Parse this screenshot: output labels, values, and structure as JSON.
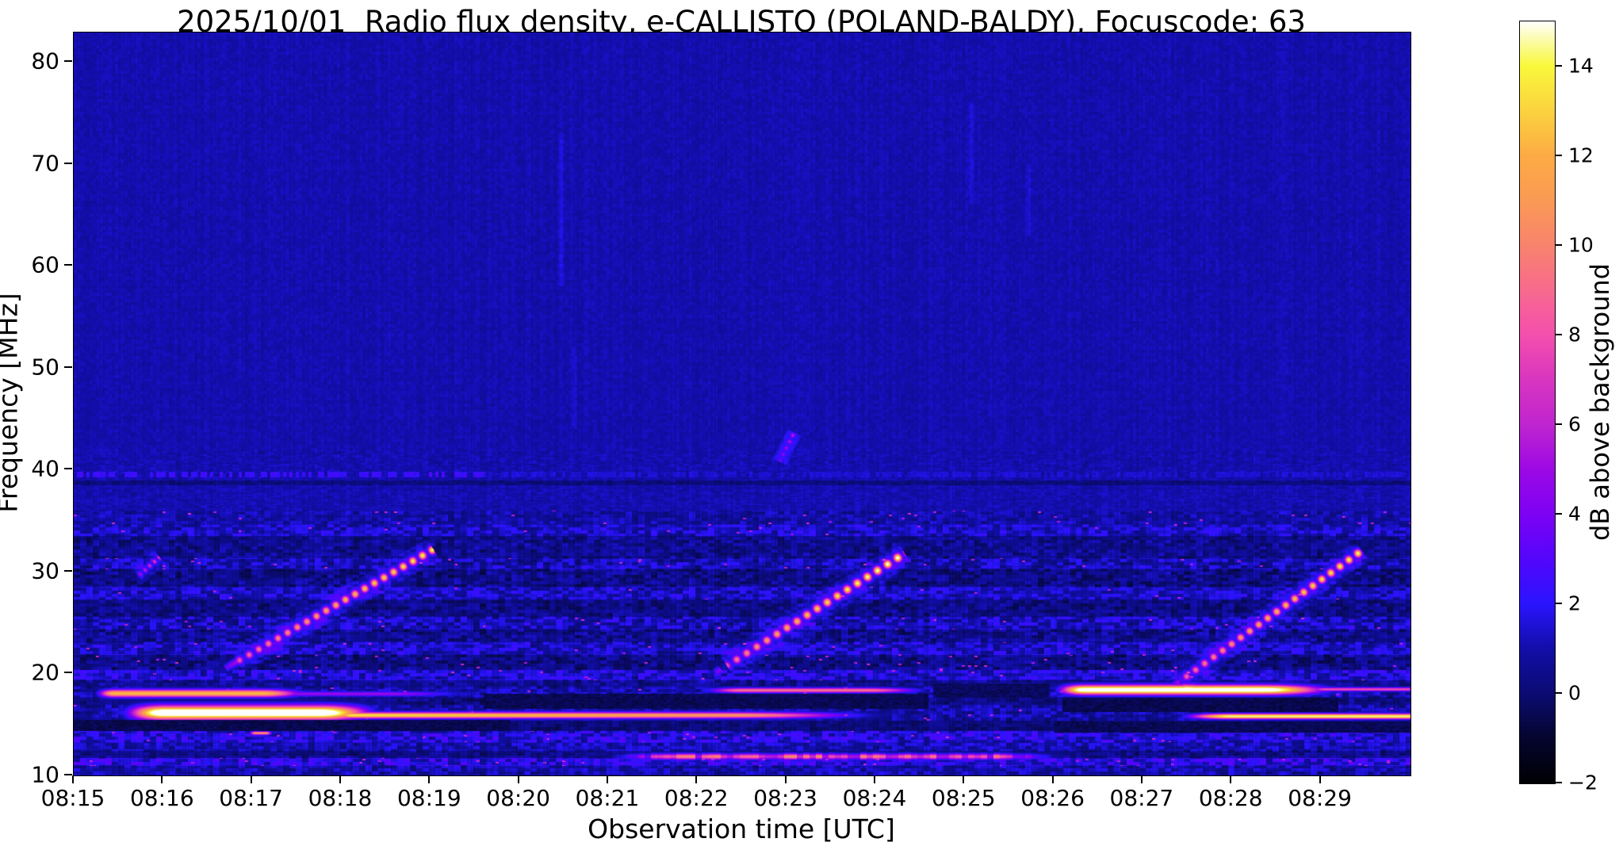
{
  "chart_data": {
    "type": "heatmap",
    "title": "2025/10/01  Radio flux density, e-CALLISTO (POLAND-BALDY), Focuscode: 63",
    "x": {
      "label": "Observation time [UTC]",
      "start": "08:15",
      "end": "08:30",
      "minutes_span": 15.01,
      "tick_labels": [
        "08:15",
        "08:16",
        "08:17",
        "08:18",
        "08:19",
        "08:20",
        "08:21",
        "08:22",
        "08:23",
        "08:24",
        "08:25",
        "08:26",
        "08:27",
        "08:28",
        "08:29"
      ]
    },
    "y": {
      "label": "Frequency [MHz]",
      "min": 10,
      "max": 82.9,
      "ticks": [
        80,
        70,
        60,
        50,
        40,
        30,
        20,
        10
      ]
    },
    "z": {
      "label": "dB above background",
      "min": -2,
      "max": 15,
      "ticks": [
        14,
        12,
        10,
        8,
        6,
        4,
        2,
        0,
        -2
      ],
      "tick_labels": [
        "14",
        "12",
        "10",
        "8",
        "6",
        "4",
        "2",
        "0",
        "−2"
      ]
    },
    "colormap_stops": [
      [
        -2,
        "#000004"
      ],
      [
        -1,
        "#05052e"
      ],
      [
        0,
        "#0b0b72"
      ],
      [
        1,
        "#120ea8"
      ],
      [
        2,
        "#2a14fe"
      ],
      [
        3,
        "#5306fb"
      ],
      [
        4,
        "#7d02f4"
      ],
      [
        5,
        "#9c09e5"
      ],
      [
        6,
        "#bf25cf"
      ],
      [
        7,
        "#d835c0"
      ],
      [
        8,
        "#f44fad"
      ],
      [
        9,
        "#f76a8e"
      ],
      [
        10,
        "#f8836c"
      ],
      [
        11,
        "#fa9a55"
      ],
      [
        12,
        "#fcab44"
      ],
      [
        13,
        "#fbd23e"
      ],
      [
        14,
        "#f9f83b"
      ],
      [
        14.7,
        "#fcfcc0"
      ],
      [
        15,
        "#ffffff"
      ]
    ],
    "background": {
      "upper_base_db": 1.05,
      "upper_noise": 0.22,
      "upper_stripe": 0.3,
      "lower_stripe": 0.9,
      "pixel_jitter": 0.18,
      "upper_limit_mhz": 36
    },
    "bands": [
      {
        "f0": 10.0,
        "f1": 10.9,
        "base": 1.0,
        "amp": 0.9,
        "hot": 0
      },
      {
        "f0": 10.9,
        "f1": 11.7,
        "base": 1.9,
        "amp": 1.3,
        "hot": 0.02
      },
      {
        "f0": 11.7,
        "f1": 12.4,
        "base": 0.4,
        "amp": 0.7,
        "hot": 0
      },
      {
        "f0": 12.4,
        "f1": 13.3,
        "base": 1.1,
        "amp": 0.9,
        "hot": 0
      },
      {
        "f0": 13.3,
        "f1": 14.35,
        "base": 1.7,
        "amp": 1.2,
        "hot": 0.01
      },
      {
        "f0": 14.35,
        "f1": 15.4,
        "base": 0.15,
        "amp": 0.55,
        "hot": 0
      },
      {
        "f0": 15.4,
        "f1": 16.95,
        "base": 0.9,
        "amp": 0.9,
        "hot": 0.005
      },
      {
        "f0": 16.95,
        "f1": 17.7,
        "base": 0.3,
        "amp": 0.7,
        "hot": 0
      },
      {
        "f0": 17.7,
        "f1": 18.65,
        "base": 1.0,
        "amp": 1.0,
        "hot": 0.01
      },
      {
        "f0": 18.65,
        "f1": 19.3,
        "base": 0.55,
        "amp": 0.8,
        "hot": 0
      },
      {
        "f0": 19.3,
        "f1": 20.35,
        "base": 1.5,
        "amp": 1.1,
        "hot": 0.01
      },
      {
        "f0": 20.35,
        "f1": 21.8,
        "base": 0.35,
        "amp": 0.9,
        "hot": 0.01
      },
      {
        "f0": 21.8,
        "f1": 23.05,
        "base": 1.3,
        "amp": 1.1,
        "hot": 0.005
      },
      {
        "f0": 23.05,
        "f1": 24.3,
        "base": 0.5,
        "amp": 0.9,
        "hot": 0
      },
      {
        "f0": 24.3,
        "f1": 25.55,
        "base": 1.2,
        "amp": 1.2,
        "hot": 0.01
      },
      {
        "f0": 25.55,
        "f1": 27.3,
        "base": 0.35,
        "amp": 0.8,
        "hot": 0
      },
      {
        "f0": 27.3,
        "f1": 28.55,
        "base": 1.3,
        "amp": 1.0,
        "hot": 0.005
      },
      {
        "f0": 28.55,
        "f1": 30.2,
        "base": 0.35,
        "amp": 0.9,
        "hot": 0
      },
      {
        "f0": 30.2,
        "f1": 31.3,
        "base": 1.1,
        "amp": 1.1,
        "hot": 0.01
      },
      {
        "f0": 31.3,
        "f1": 33.5,
        "base": 0.5,
        "amp": 0.8,
        "hot": 0
      },
      {
        "f0": 33.5,
        "f1": 34.6,
        "base": 1.3,
        "amp": 1.0,
        "hot": 0.005
      },
      {
        "f0": 34.6,
        "f1": 36.0,
        "base": 0.9,
        "amp": 0.7,
        "hot": 0.01
      }
    ],
    "rfi_line": {
      "fc": 39.55,
      "halfw": 0.28,
      "bright_until_min": 4.6,
      "dark_f0": 38.5,
      "dark_f1": 38.95
    },
    "h_features": [
      {
        "t0": 0.2,
        "t1": 2.75,
        "fc": 18.05,
        "sig": 0.26,
        "peak": 12.5,
        "taperL": 0.1,
        "taperR": 0.25
      },
      {
        "t0": 1.8,
        "t1": 4.7,
        "fc": 18.0,
        "sig": 0.16,
        "peak": 5.0,
        "taperL": 0.2,
        "taperR": 0.4
      },
      {
        "t0": 0.45,
        "t1": 3.55,
        "fc": 16.15,
        "sig": 0.48,
        "peak": 17.5,
        "taperL": 0.18,
        "taperR": 0.25
      },
      {
        "t0": 2.8,
        "t1": 9.4,
        "fc": 15.9,
        "sig": 0.21,
        "peak": 14.0,
        "endPeak": 9.5,
        "taperL": 0.05,
        "taperR": 0.3
      },
      {
        "t0": 6.95,
        "t1": 9.75,
        "fc": 18.35,
        "sig": 0.17,
        "peak": 9.3,
        "taperL": 0.2,
        "taperR": 0.3
      },
      {
        "t0": 10.95,
        "t1": 14.35,
        "fc": 18.4,
        "sig": 0.32,
        "peak": 17.0,
        "taperL": 0.12,
        "taperR": 0.3
      },
      {
        "t0": 13.8,
        "t1": 15.05,
        "fc": 18.45,
        "sig": 0.13,
        "peak": 8.0,
        "taperL": 0.2,
        "taperR": 0.05
      },
      {
        "t0": 12.3,
        "t1": 15.05,
        "fc": 15.8,
        "sig": 0.18,
        "peak": 14.5,
        "taperL": 0.25,
        "taperR": 0.02
      },
      {
        "t0": 5.9,
        "t1": 11.3,
        "fc": 11.85,
        "sig": 0.21,
        "peak": 10.5,
        "taperL": 0.15,
        "taperR": 0.2,
        "beaded": 1
      },
      {
        "t0": 1.95,
        "t1": 2.25,
        "fc": 14.15,
        "sig": 0.12,
        "peak": 11.0,
        "taperL": 0.3,
        "taperR": 0.3
      },
      {
        "t0": 0.0,
        "t1": 0.3,
        "fc": 14.6,
        "sig": 0.2,
        "peak": 6.0,
        "taperL": 0.02,
        "taperR": 0.5
      }
    ],
    "bursts": [
      {
        "t0": 1.83,
        "f0": 21.2,
        "t1": 3.95,
        "f1": 31.8,
        "peak": 13.2,
        "w": 3.4,
        "bead": 14,
        "lead": 0.18
      },
      {
        "t0": 7.33,
        "f0": 20.8,
        "t1": 9.25,
        "f1": 31.4,
        "peak": 14.6,
        "w": 3.6,
        "bead": 15,
        "lead": 0.22
      },
      {
        "t0": 12.42,
        "f0": 19.3,
        "t1": 14.38,
        "f1": 31.6,
        "peak": 13.4,
        "w": 3.4,
        "bead": 14,
        "lead": 0.15
      },
      {
        "t0": 0.72,
        "f0": 29.6,
        "t1": 0.95,
        "f1": 31.4,
        "peak": 6.5,
        "w": 2.5,
        "bead": 8,
        "lead": 0
      },
      {
        "t0": 7.92,
        "f0": 40.8,
        "t1": 8.08,
        "f1": 43.6,
        "peak": 4.8,
        "w": 2.2,
        "bead": 9,
        "lead": 0
      }
    ],
    "dark_patches": [
      {
        "t0": 0.0,
        "t1": 4.9,
        "f0": 14.35,
        "f1": 15.45,
        "cap": -0.9
      },
      {
        "t0": 4.6,
        "t1": 9.6,
        "f0": 16.5,
        "f1": 18.0,
        "cap": -0.8
      },
      {
        "t0": 9.65,
        "t1": 10.95,
        "f0": 17.6,
        "f1": 19.0,
        "cap": -0.7
      },
      {
        "t0": 11.1,
        "t1": 14.2,
        "f0": 16.2,
        "f1": 17.6,
        "cap": -0.9
      },
      {
        "t0": 11.0,
        "t1": 15.05,
        "f0": 14.2,
        "f1": 15.3,
        "cap": -0.8
      }
    ],
    "vertical_streaks": [
      {
        "t": 5.47,
        "f0": 58,
        "f1": 73,
        "dv": 0.55,
        "w": 2.5
      },
      {
        "t": 10.08,
        "f0": 66,
        "f1": 76,
        "dv": 0.5,
        "w": 2.2
      },
      {
        "t": 10.72,
        "f0": 63,
        "f1": 70,
        "dv": 0.45,
        "w": 2.0
      },
      {
        "t": 5.62,
        "f0": 44,
        "f1": 52,
        "dv": 0.4,
        "w": 2.0
      }
    ]
  }
}
